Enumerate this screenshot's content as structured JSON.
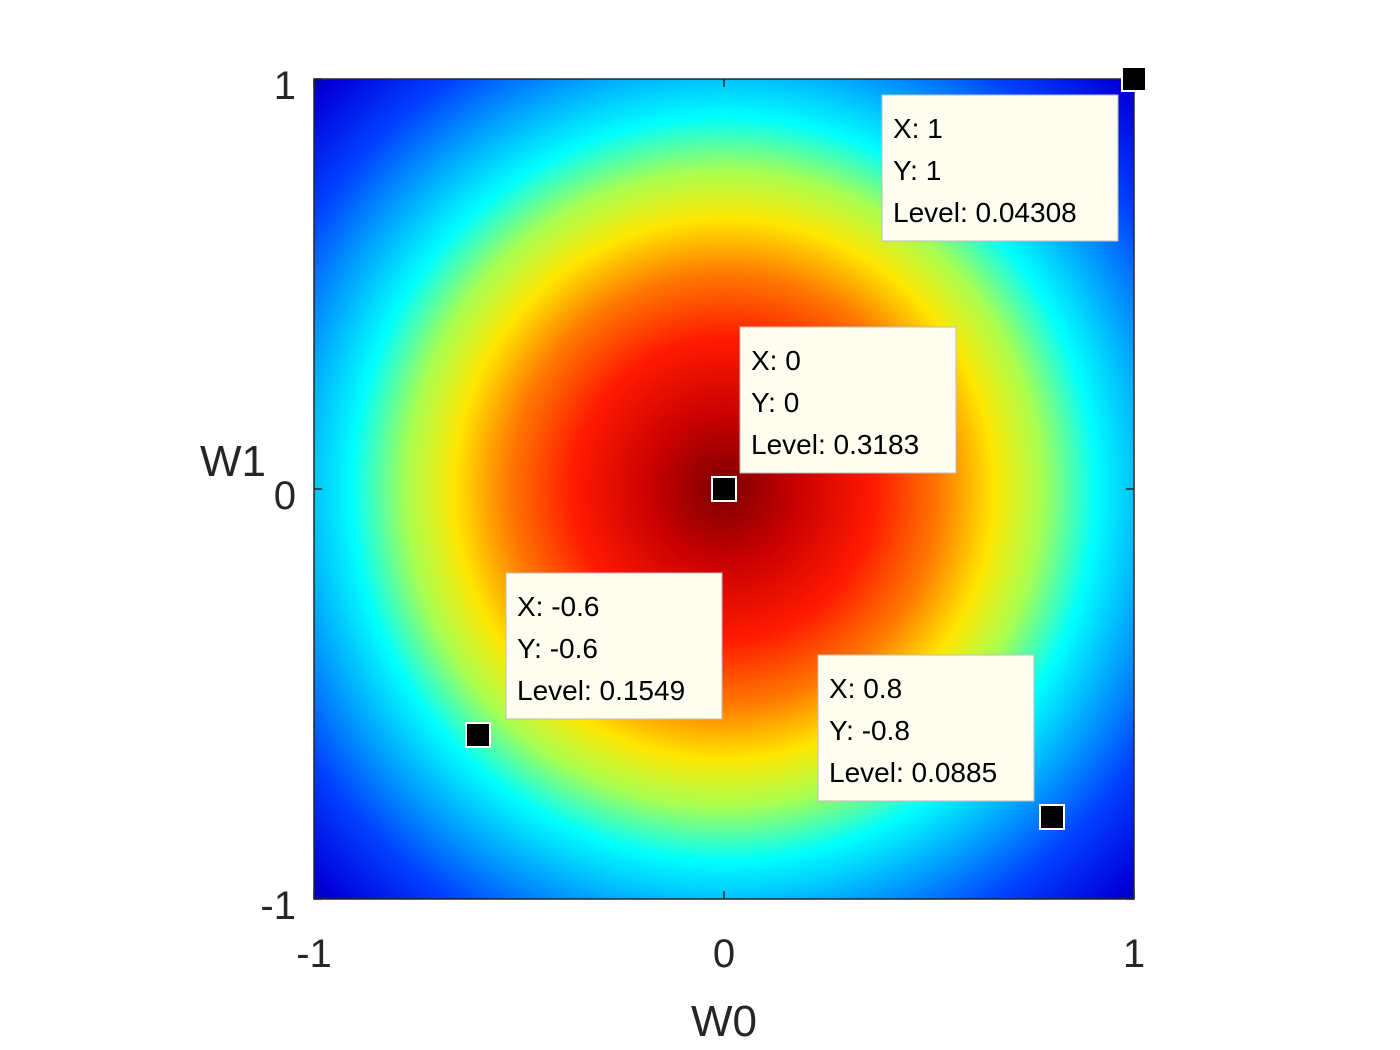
{
  "chart_data": {
    "type": "heatmap",
    "title": "",
    "xlabel": "W0",
    "ylabel": "W1",
    "xlim": [
      -1,
      1
    ],
    "ylim": [
      -1,
      1
    ],
    "xticks": [
      -1,
      0,
      1
    ],
    "yticks": [
      -1,
      0,
      1
    ],
    "xtick_labels": [
      "-1",
      "0",
      "1"
    ],
    "ytick_labels": [
      "-1",
      "0",
      "1"
    ],
    "colormap": "jet",
    "grid": false,
    "field": "radially symmetric peak centred at (0, 0)",
    "datatips": [
      {
        "x": 1,
        "y": 1,
        "level": 0.04308,
        "lines": [
          "X: 1",
          "Y: 1",
          "Level: 0.04308"
        ]
      },
      {
        "x": 0,
        "y": 0,
        "level": 0.3183,
        "lines": [
          "X: 0",
          "Y: 0",
          "Level: 0.3183"
        ]
      },
      {
        "x": -0.6,
        "y": -0.6,
        "level": 0.1549,
        "lines": [
          "X: -0.6",
          "Y: -0.6",
          "Level: 0.1549"
        ]
      },
      {
        "x": 0.8,
        "y": -0.8,
        "level": 0.0885,
        "lines": [
          "X: 0.8",
          "Y: -0.8",
          "Level: 0.0885"
        ]
      }
    ]
  }
}
